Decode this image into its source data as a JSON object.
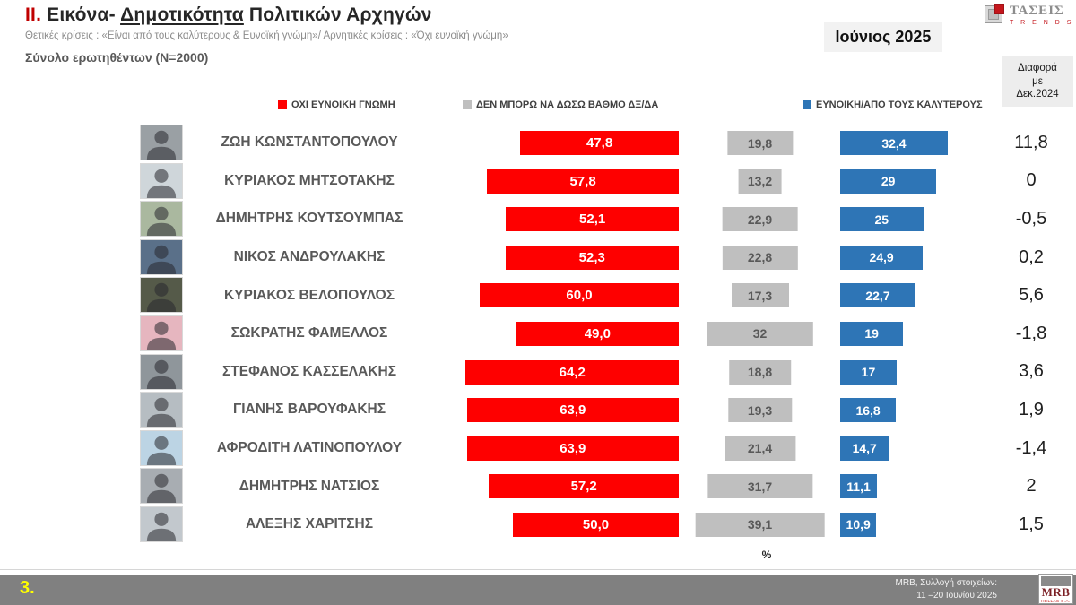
{
  "header": {
    "title_prefix": "II.",
    "title_part1": " Εικόνα- ",
    "title_underlined": "Δημοτικότητα",
    "title_part2": " Πολιτικών Αρχηγών",
    "subtitle": "Θετικές κρίσεις : «Είναι από τους καλύτερους &  Ευνοϊκή γνώμη»/ Αρνητικές κρίσεις : «Όχι ευνοϊκή γνώμη»",
    "sample": "Σύνολο ερωτηθέντων (N=2000)",
    "date_box": "Ιούνιος 2025",
    "diff_box_line1": "Διαφορά",
    "diff_box_line2": "με",
    "diff_box_line3": "Δεκ.2024"
  },
  "taseis_logo": {
    "name": "ΤΑΣΕΙΣ",
    "sub": "T R E N D S"
  },
  "legend": {
    "items": [
      {
        "label": "ΟΧΙ ΕΥΝΟΙΚΗ ΓΝΩΜΗ",
        "color": "#fe0000"
      },
      {
        "label": "ΔΕΝ ΜΠΟΡΩ ΝΑ ΔΩΣΩ ΒΑΘΜΟ ΔΞ/ΔΑ",
        "color": "#bfbfbf"
      },
      {
        "label": "ΕΥΝΟΙΚΗ/ΑΠΟ ΤΟΥΣ ΚΑΛΥΤΕΡΟΥΣ",
        "color": "#2e75b6"
      }
    ]
  },
  "chart_data": {
    "type": "bar",
    "orientation": "horizontal",
    "unit": "%",
    "title": "II. Εικόνα- Δημοτικότητα Πολιτικών Αρχηγών",
    "categories": [
      "ΖΩΗ ΚΩΝΣΤΑΝΤΟΠΟΥΛΟΥ",
      "ΚΥΡΙΑΚΟΣ ΜΗΤΣΟΤΑΚΗΣ",
      "ΔΗΜΗΤΡΗΣ ΚΟΥΤΣΟΥΜΠΑΣ",
      "ΝΙΚΟΣ ΑΝΔΡΟΥΛΑΚΗΣ",
      "ΚΥΡΙΑΚΟΣ ΒΕΛΟΠΟΥΛΟΣ",
      "ΣΩΚΡΑΤΗΣ ΦΑΜΕΛΛΟΣ",
      "ΣΤΕΦΑΝΟΣ ΚΑΣΣΕΛΑΚΗΣ",
      "ΓΙΑΝΗΣ ΒΑΡΟΥΦΑΚΗΣ",
      "ΑΦΡΟΔΙΤΗ ΛΑΤΙΝΟΠΟΥΛΟΥ",
      "ΔΗΜΗΤΡΗΣ ΝΑΤΣΙΟΣ",
      "ΑΛΕΞΗΣ ΧΑΡΙΤΣΗΣ"
    ],
    "series": [
      {
        "name": "ΟΧΙ ΕΥΝΟΙΚΗ ΓΝΩΜΗ",
        "color": "#fe0000",
        "values": [
          47.8,
          57.8,
          52.1,
          52.3,
          60.0,
          49.0,
          64.2,
          63.9,
          63.9,
          57.2,
          50.0
        ],
        "labels": [
          "47,8",
          "57,8",
          "52,1",
          "52,3",
          "60,0",
          "49,0",
          "64,2",
          "63,9",
          "63,9",
          "57,2",
          "50,0"
        ]
      },
      {
        "name": "ΔΕΝ ΜΠΟΡΩ ΝΑ ΔΩΣΩ ΒΑΘΜΟ ΔΞ/ΔΑ",
        "color": "#bfbfbf",
        "values": [
          19.8,
          13.2,
          22.9,
          22.8,
          17.3,
          32,
          18.8,
          19.3,
          21.4,
          31.7,
          39.1
        ],
        "labels": [
          "19,8",
          "13,2",
          "22,9",
          "22,8",
          "17,3",
          "32",
          "18,8",
          "19,3",
          "21,4",
          "31,7",
          "39,1"
        ]
      },
      {
        "name": "ΕΥΝΟΙΚΗ/ΑΠΟ ΤΟΥΣ ΚΑΛΥΤΕΡΟΥΣ",
        "color": "#2e75b6",
        "values": [
          32.4,
          29,
          25,
          24.9,
          22.7,
          19,
          17,
          16.8,
          14.7,
          11.1,
          10.9
        ],
        "labels": [
          "32,4",
          "29",
          "25",
          "24,9",
          "22,7",
          "19",
          "17",
          "16,8",
          "14,7",
          "11,1",
          "10,9"
        ]
      }
    ],
    "diff_column": {
      "header": "Διαφορά με Δεκ.2024",
      "labels": [
        "11,8",
        "0",
        "-0,5",
        "0,2",
        "5,6",
        "-1,8",
        "3,6",
        "1,9",
        "-1,4",
        "2",
        "1,5"
      ]
    },
    "axis_unit_label": "%",
    "photo_placeholder_colors": [
      "#9aa0a4",
      "#cfd6da",
      "#aab89f",
      "#5a7089",
      "#555a49",
      "#e6b6bf",
      "#8f969b",
      "#b6bdc2",
      "#bcd4e4",
      "#a8adb2",
      "#c2c8cd"
    ]
  },
  "footer": {
    "page": "3.",
    "source_line1": "MRB, Συλλογή στοιχείων:",
    "source_line2": "11 –20 Ιουνίου 2025",
    "mrb_name": "MRB",
    "mrb_sub": "HELLAS S.A."
  }
}
